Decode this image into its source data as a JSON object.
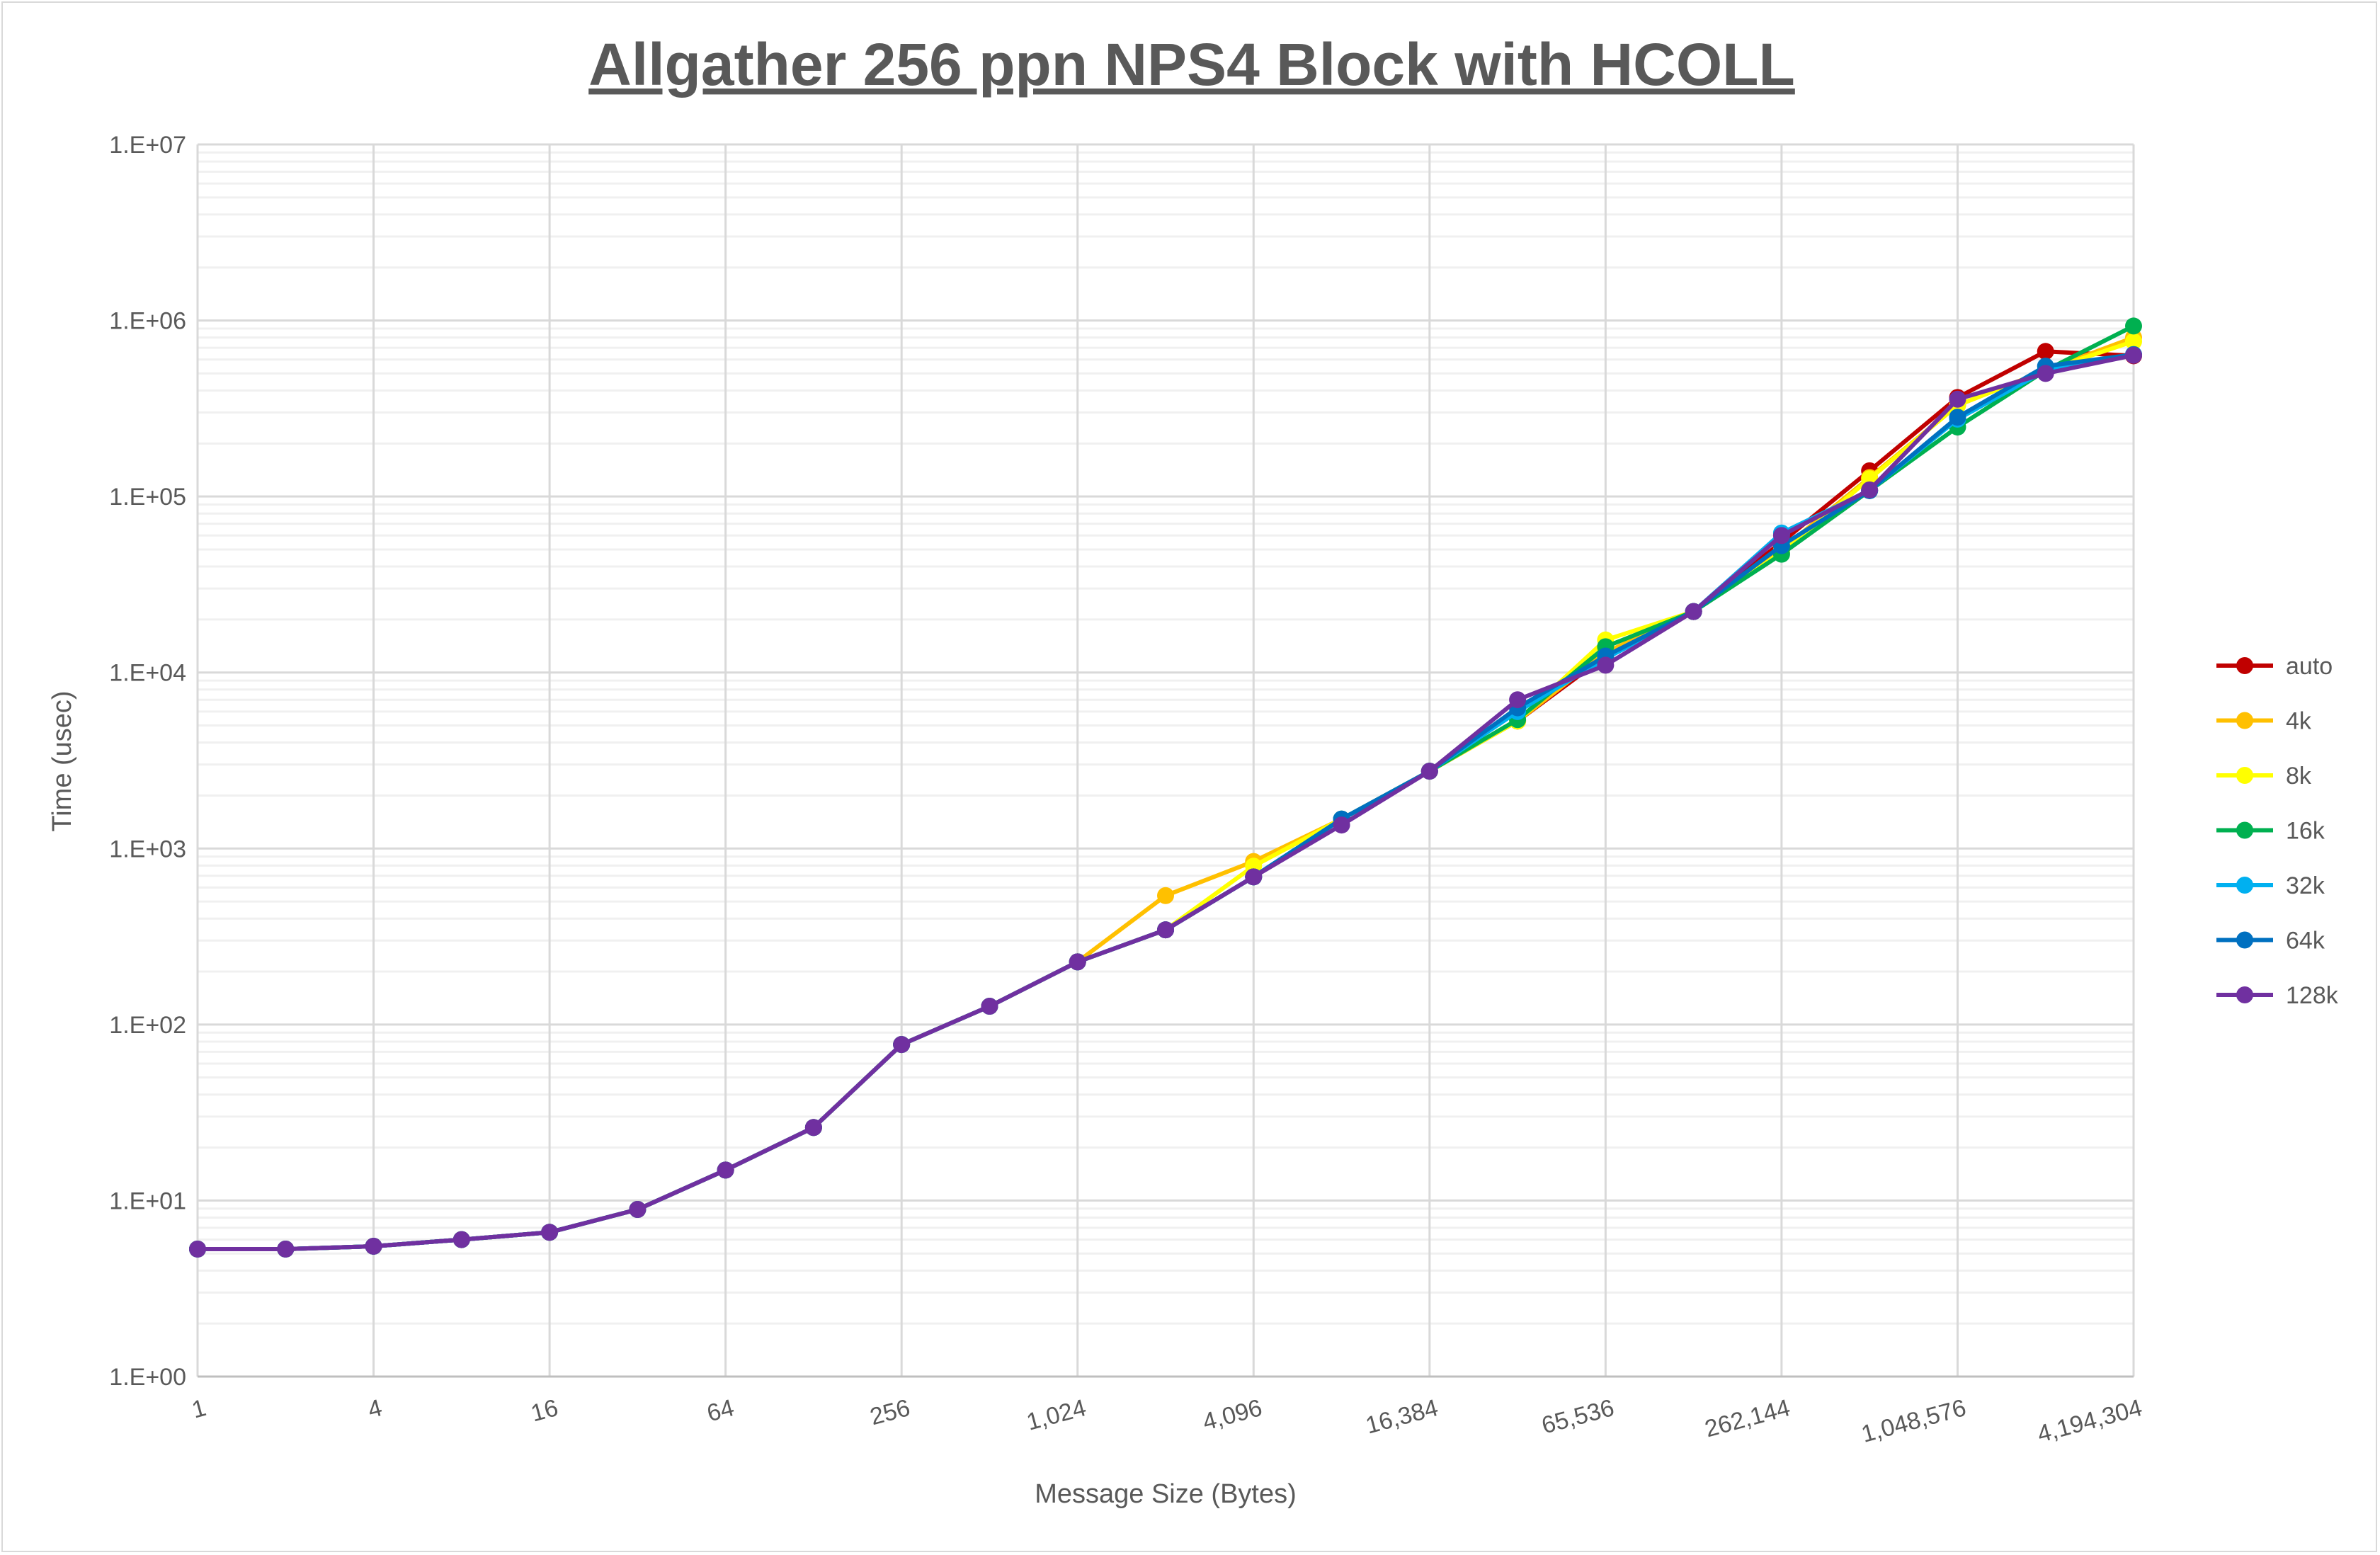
{
  "chart_data": {
    "type": "line",
    "title": "Allgather 256 ppn NPS4 Block with HCOLL",
    "xlabel": "Message Size (Bytes)",
    "ylabel": "Time (usec)",
    "x_scale": "log2",
    "y_scale": "log10",
    "ylim": [
      1,
      10000000
    ],
    "grid": true,
    "legend_position": "right",
    "x": [
      1,
      2,
      4,
      8,
      16,
      32,
      64,
      128,
      256,
      512,
      1024,
      2048,
      4096,
      8192,
      16384,
      32768,
      65536,
      131072,
      262144,
      524288,
      1048576,
      2097152,
      4194304
    ],
    "x_tick_labels": [
      "1",
      "4",
      "16",
      "64",
      "256",
      "1,024",
      "4,096",
      "16,384",
      "65,536",
      "262,144",
      "1,048,576",
      "4,194,304"
    ],
    "y_tick_labels": [
      "1.E+00",
      "1.E+01",
      "1.E+02",
      "1.E+03",
      "1.E+04",
      "1.E+05",
      "1.E+06",
      "1.E+07"
    ],
    "series": [
      {
        "name": "auto",
        "color": "#C00000",
        "values": [
          5.3,
          5.3,
          5.5,
          6.0,
          6.6,
          8.9,
          14.9,
          26,
          77,
          127,
          227,
          345,
          690,
          1470,
          2750,
          5300,
          12400,
          22200,
          55000,
          140000,
          365000,
          667000,
          630000
        ]
      },
      {
        "name": "4k",
        "color": "#FFC000",
        "values": [
          5.3,
          5.3,
          5.5,
          6.0,
          6.6,
          8.9,
          14.9,
          26,
          77,
          127,
          227,
          540,
          844,
          1470,
          2750,
          5300,
          13000,
          22200,
          50000,
          128000,
          330000,
          520000,
          800000
        ]
      },
      {
        "name": "8k",
        "color": "#FFFF00",
        "values": [
          5.3,
          5.3,
          5.5,
          6.0,
          6.6,
          8.9,
          14.9,
          26,
          77,
          127,
          227,
          345,
          794,
          1470,
          2750,
          5300,
          15300,
          22200,
          48000,
          126000,
          330000,
          520000,
          760000
        ]
      },
      {
        "name": "16k",
        "color": "#00B050",
        "values": [
          5.3,
          5.3,
          5.5,
          6.0,
          6.6,
          8.9,
          14.9,
          26,
          77,
          127,
          227,
          345,
          690,
          1470,
          2750,
          5400,
          14000,
          22200,
          47000,
          108000,
          248000,
          520000,
          930000
        ]
      },
      {
        "name": "32k",
        "color": "#00B0F0",
        "values": [
          5.3,
          5.3,
          5.5,
          6.0,
          6.6,
          8.9,
          14.9,
          26,
          77,
          127,
          227,
          345,
          690,
          1470,
          2750,
          6000,
          12000,
          22200,
          62000,
          108000,
          275000,
          520000,
          640000
        ]
      },
      {
        "name": "64k",
        "color": "#0070C0",
        "values": [
          5.3,
          5.3,
          5.5,
          6.0,
          6.6,
          8.9,
          14.9,
          26,
          77,
          127,
          227,
          345,
          690,
          1470,
          2750,
          6300,
          12400,
          22200,
          52600,
          108000,
          282000,
          550000,
          640000
        ]
      },
      {
        "name": "128k",
        "color": "#7030A0",
        "values": [
          5.3,
          5.3,
          5.5,
          6.0,
          6.6,
          8.9,
          14.9,
          26,
          77,
          127,
          227,
          345,
          690,
          1360,
          2750,
          7000,
          11000,
          22200,
          60000,
          109000,
          357000,
          500000,
          634000
        ]
      }
    ]
  }
}
